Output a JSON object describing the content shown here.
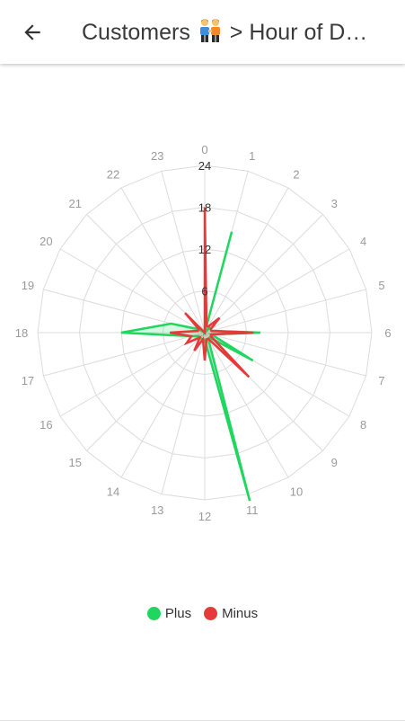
{
  "header": {
    "title": "Customers",
    "title_suffix": " > Hour of D…",
    "back_icon": "arrow-left-icon",
    "people_icon": "people-holding-hands-icon"
  },
  "legend": {
    "plus_label": "Plus",
    "minus_label": "Minus"
  },
  "colors": {
    "plus": "#1fd65f",
    "minus": "#e53a3a",
    "grid": "#dcdcdc",
    "label": "#9a9a9a"
  },
  "chart_data": {
    "type": "radar",
    "categories": [
      "0",
      "1",
      "2",
      "3",
      "4",
      "5",
      "6",
      "7",
      "8",
      "9",
      "10",
      "11",
      "12",
      "13",
      "14",
      "15",
      "16",
      "17",
      "18",
      "19",
      "20",
      "21",
      "22",
      "23"
    ],
    "radial_ticks": [
      "6",
      "12",
      "18",
      "24"
    ],
    "rlim": [
      0,
      24
    ],
    "grid": true,
    "legend_position": "bottom",
    "series": [
      {
        "name": "Plus",
        "values": [
          0,
          15,
          0,
          1,
          1,
          1,
          8,
          1,
          8,
          1,
          1,
          25,
          1,
          1,
          1,
          1,
          1,
          2,
          12,
          5,
          1,
          0,
          0,
          0
        ]
      },
      {
        "name": "Minus",
        "values": [
          18,
          1,
          1,
          3,
          1,
          1,
          7,
          1,
          1,
          9,
          1,
          1,
          4,
          1,
          3,
          1,
          3,
          2,
          5,
          1,
          1,
          4,
          0,
          0
        ]
      }
    ]
  }
}
